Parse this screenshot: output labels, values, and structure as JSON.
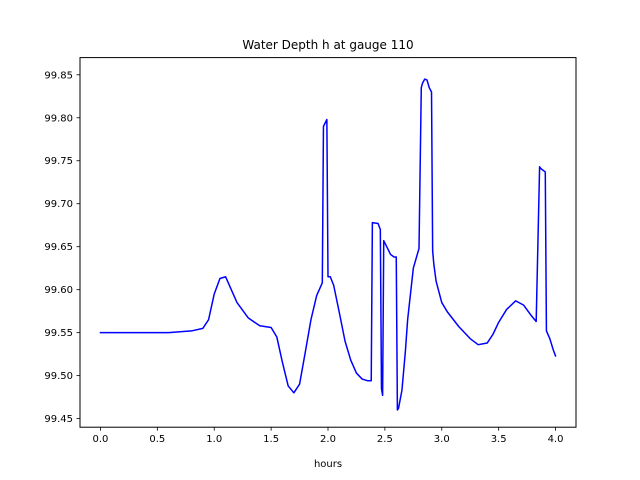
{
  "chart_data": {
    "type": "line",
    "title": "Water Depth h at gauge 110",
    "xlabel": "hours",
    "ylabel": "",
    "xlim": [
      -0.18,
      4.18
    ],
    "ylim": [
      99.44,
      99.87
    ],
    "xticks": [
      0.0,
      0.5,
      1.0,
      1.5,
      2.0,
      2.5,
      3.0,
      3.5,
      4.0
    ],
    "xtick_labels": [
      "0.0",
      "0.5",
      "1.0",
      "1.5",
      "2.0",
      "2.5",
      "3.0",
      "3.5",
      "4.0"
    ],
    "yticks": [
      99.45,
      99.5,
      99.55,
      99.6,
      99.65,
      99.7,
      99.75,
      99.8,
      99.85
    ],
    "ytick_labels": [
      "99.45",
      "99.50",
      "99.55",
      "99.60",
      "99.65",
      "99.70",
      "99.75",
      "99.80",
      "99.85"
    ],
    "grid": false,
    "series": [
      {
        "color": "#0000ff",
        "x": [
          0.0,
          0.3,
          0.6,
          0.8,
          0.9,
          0.95,
          1.0,
          1.05,
          1.1,
          1.15,
          1.2,
          1.3,
          1.4,
          1.5,
          1.55,
          1.6,
          1.65,
          1.7,
          1.75,
          1.8,
          1.85,
          1.9,
          1.95,
          1.96,
          1.99,
          2.0,
          2.02,
          2.05,
          2.1,
          2.15,
          2.2,
          2.25,
          2.3,
          2.35,
          2.38,
          2.39,
          2.44,
          2.46,
          2.47,
          2.48,
          2.49,
          2.52,
          2.55,
          2.58,
          2.6,
          2.61,
          2.62,
          2.65,
          2.68,
          2.7,
          2.75,
          2.8,
          2.82,
          2.83,
          2.85,
          2.87,
          2.89,
          2.91,
          2.92,
          2.93,
          2.95,
          3.0,
          3.05,
          3.15,
          3.25,
          3.32,
          3.4,
          3.45,
          3.5,
          3.57,
          3.65,
          3.72,
          3.78,
          3.83,
          3.86,
          3.87,
          3.91,
          3.92,
          3.95,
          3.98,
          4.0
        ],
        "values": [
          99.55,
          99.55,
          99.55,
          99.552,
          99.555,
          99.565,
          99.595,
          99.613,
          99.615,
          99.6,
          99.585,
          99.567,
          99.558,
          99.556,
          99.545,
          99.515,
          99.488,
          99.48,
          99.49,
          99.527,
          99.565,
          99.593,
          99.608,
          99.79,
          99.798,
          99.615,
          99.615,
          99.605,
          99.573,
          99.54,
          99.518,
          99.503,
          99.496,
          99.494,
          99.494,
          99.678,
          99.677,
          99.67,
          99.485,
          99.477,
          99.657,
          99.649,
          99.641,
          99.638,
          99.638,
          99.46,
          99.462,
          99.483,
          99.528,
          99.565,
          99.625,
          99.648,
          99.835,
          99.84,
          99.845,
          99.844,
          99.835,
          99.83,
          99.645,
          99.63,
          99.61,
          99.585,
          99.574,
          99.557,
          99.543,
          99.536,
          99.538,
          99.548,
          99.562,
          99.577,
          99.587,
          99.582,
          99.571,
          99.563,
          99.743,
          99.741,
          99.737,
          99.552,
          99.543,
          99.53,
          99.523
        ]
      }
    ]
  }
}
